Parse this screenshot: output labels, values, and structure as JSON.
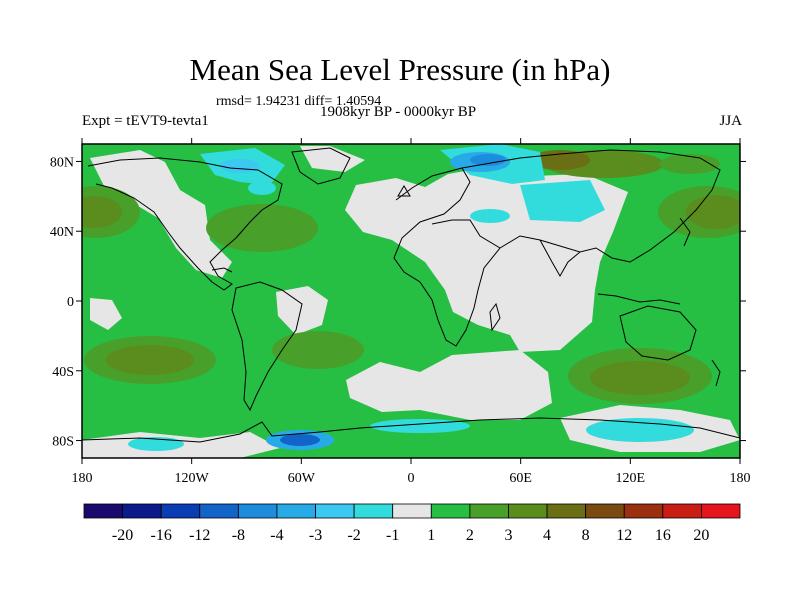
{
  "title": "Mean Sea Level Pressure (in hPa)",
  "stats": "rmsd= 1.94231 diff= 1.40594",
  "period": "1908kyr BP - 0000kyr BP",
  "experiment": "Expt = tEVT9-tevta1",
  "season": "JJA",
  "lat_ticks": [
    "80N",
    "40N",
    "0",
    "40S",
    "80S"
  ],
  "lon_ticks": [
    "180",
    "120W",
    "60W",
    "0",
    "60E",
    "120E",
    "180"
  ],
  "colorbar": {
    "labels": [
      "-20",
      "-16",
      "-12",
      "-8",
      "-4",
      "-3",
      "-2",
      "-1",
      "1",
      "2",
      "3",
      "4",
      "8",
      "12",
      "16",
      "20"
    ],
    "colors": [
      "#1a0a6e",
      "#0d1a8c",
      "#0a3cb4",
      "#1264c8",
      "#1e8cdc",
      "#28aae6",
      "#3cc8f0",
      "#32dcdc",
      "#e6e6e6",
      "#26bf44",
      "#48a02a",
      "#5a8c1e",
      "#6a6e14",
      "#7a4a10",
      "#9a3010",
      "#c81e14",
      "#e6141e"
    ]
  },
  "map_colors": {
    "land_fill": "#26bf44",
    "near_zero": "#e6e6e6",
    "pos_3_4": "#48a02a",
    "pos_4_8": "#5a8c1e",
    "pos_8_12": "#6a6e14",
    "neg_1_2": "#32dcdc",
    "neg_2_3": "#3cc8f0",
    "neg_3_4": "#28aae6",
    "neg_4_8": "#1e8cdc",
    "neg_8_12": "#1264c8"
  }
}
